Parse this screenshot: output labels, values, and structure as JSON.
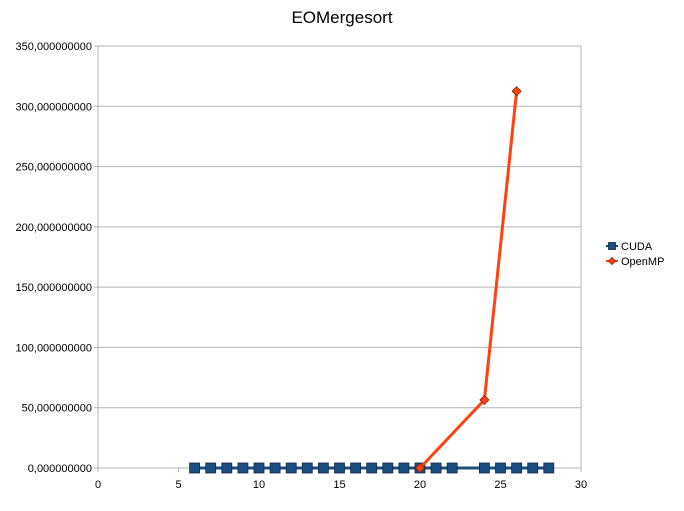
{
  "chart_data": {
    "type": "line",
    "title": "EOMergesort",
    "xlabel": "",
    "ylabel": "",
    "xlim": [
      0,
      30
    ],
    "ylim": [
      0,
      350000000
    ],
    "x_ticks": [
      {
        "value": 0,
        "label": "0"
      },
      {
        "value": 5,
        "label": "5"
      },
      {
        "value": 10,
        "label": "10"
      },
      {
        "value": 15,
        "label": "15"
      },
      {
        "value": 20,
        "label": "20"
      },
      {
        "value": 25,
        "label": "25"
      },
      {
        "value": 30,
        "label": "30"
      }
    ],
    "y_ticks": [
      {
        "value": 0,
        "label": "0,000000000"
      },
      {
        "value": 50000000,
        "label": "50,000000000"
      },
      {
        "value": 100000000,
        "label": "100,000000000"
      },
      {
        "value": 150000000,
        "label": "150,000000000"
      },
      {
        "value": 200000000,
        "label": "200,000000000"
      },
      {
        "value": 250000000,
        "label": "250,000000000"
      },
      {
        "value": 300000000,
        "label": "300,000000000"
      },
      {
        "value": 350000000,
        "label": "350,000000000"
      }
    ],
    "grid": {
      "horizontal": true,
      "vertical": false
    },
    "legend_position": "right",
    "series": [
      {
        "name": "CUDA",
        "color": "#1c4e80",
        "marker": "square",
        "x": [
          6,
          7,
          8,
          9,
          10,
          11,
          12,
          13,
          14,
          15,
          16,
          17,
          18,
          19,
          20,
          21,
          22,
          24,
          25,
          26,
          27,
          28
        ],
        "y": [
          0,
          0,
          0,
          0,
          0,
          0,
          0,
          0,
          0,
          0,
          0,
          0,
          0,
          0,
          0,
          0,
          0,
          0,
          0,
          0,
          0,
          0
        ]
      },
      {
        "name": "OpenMP",
        "color": "#ff420e",
        "marker": "diamond",
        "x": [
          20,
          24,
          26
        ],
        "y": [
          0,
          56500000,
          312500000
        ]
      }
    ]
  }
}
